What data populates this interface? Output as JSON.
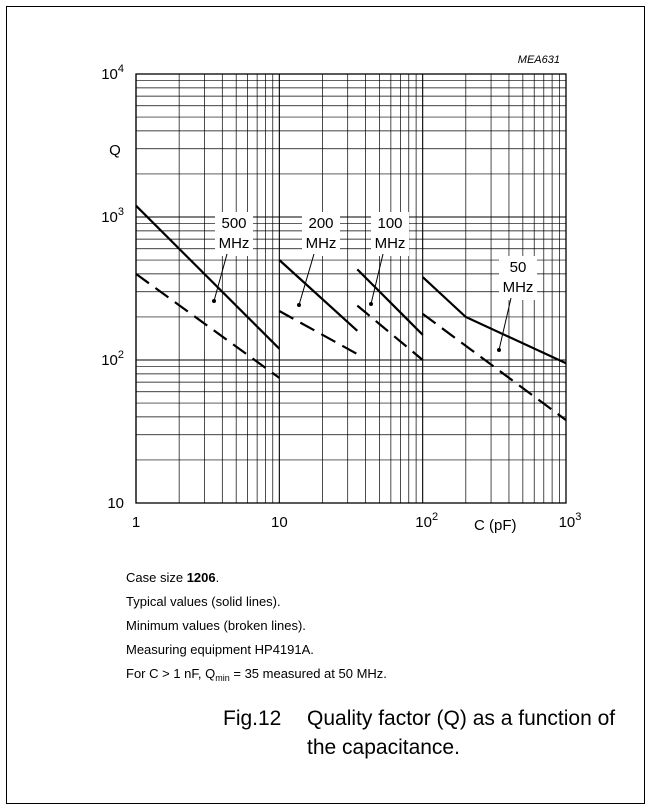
{
  "chart_data": {
    "type": "line",
    "code": "MEA631",
    "x_scale": "log",
    "y_scale": "log",
    "xlim": [
      1,
      1000
    ],
    "ylim": [
      10,
      10000
    ],
    "grid": true,
    "ylabel": "Q",
    "xlabel": "C  (pF)",
    "x_ticks": [
      {
        "base": "1",
        "exp": ""
      },
      {
        "base": "10",
        "exp": ""
      },
      {
        "base": "10",
        "exp": "2"
      },
      {
        "base": "10",
        "exp": "3"
      }
    ],
    "y_ticks": [
      {
        "base": "10",
        "exp": ""
      },
      {
        "base": "10",
        "exp": "2"
      },
      {
        "base": "10",
        "exp": "3"
      },
      {
        "base": "10",
        "exp": "4"
      }
    ],
    "series": [
      {
        "name": "500 MHz",
        "label_lines": [
          "500",
          "MHz"
        ],
        "style": "solid",
        "points": [
          [
            1,
            1200
          ],
          [
            10,
            120
          ]
        ]
      },
      {
        "name": "500 MHz",
        "style": "dashed",
        "points": [
          [
            1,
            400
          ],
          [
            10,
            75
          ]
        ]
      },
      {
        "name": "200 MHz",
        "label_lines": [
          "200",
          "MHz"
        ],
        "style": "solid",
        "points": [
          [
            10,
            500
          ],
          [
            35,
            160
          ]
        ]
      },
      {
        "name": "200 MHz",
        "style": "dashed",
        "points": [
          [
            10,
            220
          ],
          [
            35,
            110
          ]
        ]
      },
      {
        "name": "100 MHz",
        "label_lines": [
          "100",
          "MHz"
        ],
        "style": "solid",
        "points": [
          [
            35,
            430
          ],
          [
            100,
            150
          ]
        ]
      },
      {
        "name": "100 MHz",
        "style": "dashed",
        "points": [
          [
            35,
            240
          ],
          [
            100,
            100
          ]
        ]
      },
      {
        "name": "50 MHz",
        "label_lines": [
          "50",
          "MHz"
        ],
        "style": "solid",
        "points": [
          [
            100,
            380
          ],
          [
            200,
            200
          ],
          [
            1000,
            95
          ]
        ]
      },
      {
        "name": "50 MHz",
        "style": "dashed",
        "points": [
          [
            100,
            210
          ],
          [
            1000,
            38
          ]
        ]
      }
    ]
  },
  "notes": {
    "case_prefix": "Case size ",
    "case_value": "1206",
    "case_suffix": ".",
    "line2": "Typical values (solid lines).",
    "line3": "Minimum values (broken lines).",
    "line4": "Measuring equipment HP4191A.",
    "line5_a": "For C > 1 nF, Q",
    "line5_sub": "min",
    "line5_b": " = 35 measured at 50 MHz."
  },
  "caption": {
    "number": "Fig.12",
    "line1": "Quality factor (Q) as a function of",
    "line2": "the capacitance."
  }
}
